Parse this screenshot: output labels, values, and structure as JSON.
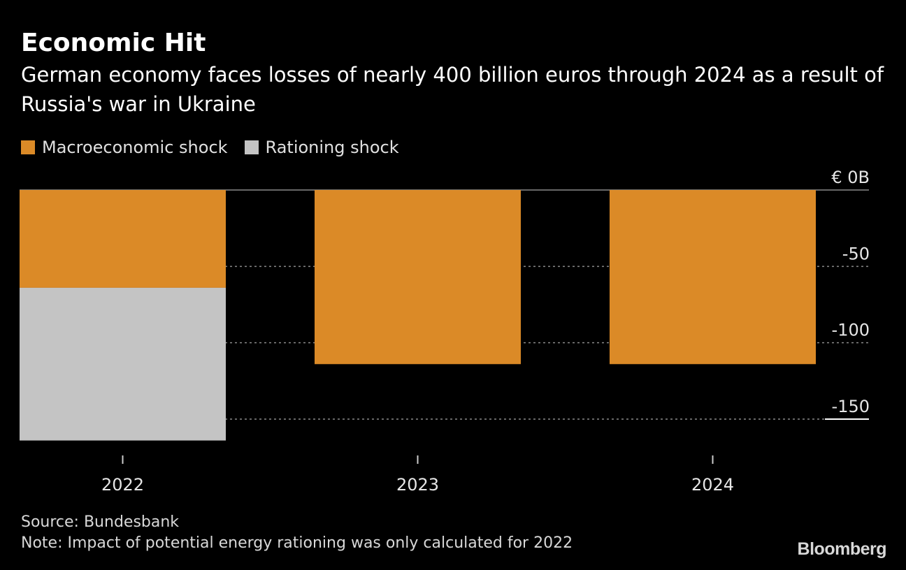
{
  "header": {
    "title": "Economic Hit",
    "subtitle": "German economy faces losses of nearly 400 billion euros through 2024 as a result of Russia's war in Ukraine"
  },
  "legend": [
    {
      "label": "Macroeconomic shock",
      "color": "#DB8A27"
    },
    {
      "label": "Rationing shock",
      "color": "#C4C4C4"
    }
  ],
  "footer": {
    "source": "Source: Bundesbank",
    "note": "Note: Impact of potential energy rationing was only calculated for 2022",
    "logo": "Bloomberg"
  },
  "chart_data": {
    "type": "bar",
    "stacked": true,
    "categories": [
      "2022",
      "2023",
      "2024"
    ],
    "series": [
      {
        "name": "Macroeconomic shock",
        "color": "#DB8A27",
        "values": [
          -64,
          -114,
          -114
        ]
      },
      {
        "name": "Rationing shock",
        "color": "#C4C4C4",
        "values": [
          -100,
          0,
          0
        ]
      }
    ],
    "ylim": [
      -165,
      0
    ],
    "yticks": [
      0,
      -50,
      -100,
      -150
    ],
    "ytick_labels": [
      "€ 0B",
      "-50",
      "-100",
      "-150"
    ],
    "y_axis_position": "right",
    "grid": true,
    "legend_position": "top-left"
  }
}
